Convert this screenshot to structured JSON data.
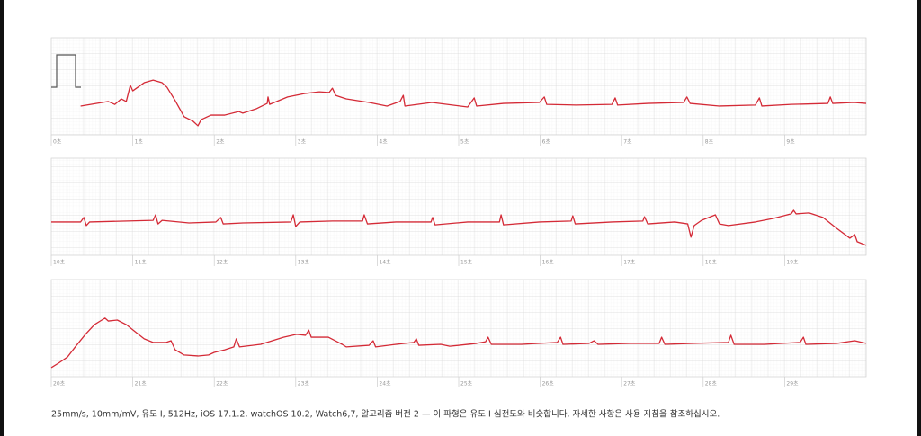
{
  "chart_data": [
    {
      "type": "line",
      "color": "#d42a36",
      "xlim": [
        0,
        10
      ],
      "ylim": [
        -1,
        2
      ],
      "xticks": [
        {
          "value": 0,
          "label": "0초"
        },
        {
          "value": 1,
          "label": "1초"
        },
        {
          "value": 2,
          "label": "2초"
        },
        {
          "value": 3,
          "label": "3초"
        },
        {
          "value": 4,
          "label": "4초"
        },
        {
          "value": 5,
          "label": "5초"
        },
        {
          "value": 6,
          "label": "6초"
        },
        {
          "value": 7,
          "label": "7초"
        },
        {
          "value": 8,
          "label": "8초"
        },
        {
          "value": 9,
          "label": "9초"
        }
      ],
      "x": [
        0.36,
        0.7,
        0.78,
        0.86,
        0.92,
        0.97,
        1.0,
        1.14,
        1.25,
        1.36,
        1.42,
        1.52,
        1.63,
        1.74,
        1.8,
        1.84,
        1.96,
        2.13,
        2.3,
        2.35,
        2.52,
        2.65,
        2.66,
        2.68,
        2.9,
        3.12,
        3.29,
        3.41,
        3.45,
        3.49,
        3.62,
        3.9,
        4.12,
        4.28,
        4.32,
        4.34,
        4.67,
        5.11,
        5.19,
        5.22,
        5.55,
        5.99,
        6.05,
        6.08,
        6.44,
        6.88,
        6.92,
        6.95,
        7.32,
        7.76,
        7.8,
        7.84,
        8.2,
        8.64,
        8.69,
        8.72,
        9.08,
        9.53,
        9.56,
        9.59,
        9.85,
        10.0
      ],
      "values": [
        -0.11,
        0.03,
        -0.06,
        0.11,
        0.03,
        0.53,
        0.36,
        0.61,
        0.69,
        0.61,
        0.47,
        0.06,
        -0.44,
        -0.58,
        -0.72,
        -0.53,
        -0.39,
        -0.39,
        -0.28,
        -0.33,
        -0.19,
        -0.03,
        0.17,
        -0.06,
        0.17,
        0.28,
        0.33,
        0.31,
        0.44,
        0.22,
        0.11,
        0,
        -0.11,
        0.03,
        0.22,
        -0.11,
        0,
        -0.14,
        0.14,
        -0.11,
        -0.03,
        0,
        0.17,
        -0.06,
        -0.08,
        -0.06,
        0.14,
        -0.08,
        -0.03,
        0,
        0.17,
        -0.03,
        -0.11,
        -0.08,
        0.14,
        -0.11,
        -0.06,
        -0.03,
        0.17,
        -0.03,
        0,
        -0.03
      ]
    },
    {
      "type": "line",
      "color": "#d42a36",
      "xlim": [
        10,
        20
      ],
      "ylim": [
        -1,
        2
      ],
      "xticks": [
        {
          "value": 10,
          "label": "10초"
        },
        {
          "value": 11,
          "label": "11초"
        },
        {
          "value": 12,
          "label": "12초"
        },
        {
          "value": 13,
          "label": "13초"
        },
        {
          "value": 14,
          "label": "14초"
        },
        {
          "value": 15,
          "label": "15초"
        },
        {
          "value": 16,
          "label": "16초"
        },
        {
          "value": 17,
          "label": "17초"
        },
        {
          "value": 18,
          "label": "18초"
        },
        {
          "value": 19,
          "label": "19초"
        }
      ],
      "x": [
        10.0,
        10.36,
        10.4,
        10.43,
        10.47,
        11.25,
        11.28,
        11.31,
        11.36,
        11.69,
        12.02,
        12.08,
        12.11,
        12.35,
        12.94,
        12.97,
        13.0,
        13.05,
        13.45,
        13.82,
        13.84,
        13.88,
        14.23,
        14.66,
        14.68,
        14.71,
        15.11,
        15.5,
        15.52,
        15.55,
        15.99,
        16.38,
        16.4,
        16.43,
        16.88,
        17.26,
        17.28,
        17.32,
        17.65,
        17.81,
        17.85,
        17.89,
        17.98,
        18.09,
        18.15,
        18.2,
        18.31,
        18.64,
        18.86,
        19.08,
        19.11,
        19.14,
        19.3,
        19.47,
        19.64,
        19.8,
        19.86,
        19.89,
        20.0
      ],
      "values": [
        0.03,
        0.03,
        0.17,
        -0.08,
        0.03,
        0.08,
        0.25,
        -0.03,
        0.08,
        0,
        0.03,
        0.17,
        -0.03,
        0,
        0.03,
        0.25,
        -0.11,
        0.03,
        0.06,
        0.06,
        0.25,
        -0.03,
        0.03,
        0.03,
        0.17,
        -0.06,
        0.03,
        0.03,
        0.25,
        -0.06,
        0.03,
        0.06,
        0.22,
        -0.03,
        0.03,
        0.06,
        0.19,
        -0.03,
        0.03,
        -0.03,
        -0.44,
        -0.08,
        0.08,
        0.19,
        0.25,
        -0.03,
        -0.08,
        0.03,
        0.14,
        0.28,
        0.39,
        0.28,
        0.31,
        0.17,
        -0.17,
        -0.47,
        -0.36,
        -0.58,
        -0.69
      ]
    },
    {
      "type": "line",
      "color": "#d42a36",
      "xlim": [
        20,
        30
      ],
      "ylim": [
        -1,
        2
      ],
      "xticks": [
        {
          "value": 20,
          "label": "20초"
        },
        {
          "value": 21,
          "label": "21초"
        },
        {
          "value": 22,
          "label": "22초"
        },
        {
          "value": 23,
          "label": "23초"
        },
        {
          "value": 24,
          "label": "24초"
        },
        {
          "value": 25,
          "label": "25초"
        },
        {
          "value": 26,
          "label": "26초"
        },
        {
          "value": 27,
          "label": "27초"
        },
        {
          "value": 28,
          "label": "28초"
        },
        {
          "value": 29,
          "label": "29초"
        }
      ],
      "x": [
        20.0,
        20.09,
        20.2,
        20.31,
        20.42,
        20.53,
        20.62,
        20.66,
        20.7,
        20.81,
        20.92,
        21.03,
        21.14,
        21.25,
        21.41,
        21.47,
        21.52,
        21.63,
        21.8,
        21.93,
        22.0,
        22.13,
        22.24,
        22.27,
        22.31,
        22.57,
        22.85,
        23.01,
        23.12,
        23.16,
        23.19,
        23.4,
        23.57,
        23.62,
        23.9,
        23.95,
        23.98,
        24.23,
        24.45,
        24.48,
        24.51,
        24.78,
        24.89,
        25.22,
        25.33,
        25.36,
        25.4,
        25.77,
        26.21,
        26.25,
        26.28,
        26.6,
        26.66,
        26.71,
        27.1,
        27.46,
        27.49,
        27.53,
        27.87,
        28.31,
        28.34,
        28.38,
        28.75,
        29.19,
        29.23,
        29.26,
        29.64,
        29.86,
        30.0
      ],
      "values": [
        -0.72,
        -0.58,
        -0.39,
        -0.03,
        0.31,
        0.61,
        0.75,
        0.81,
        0.72,
        0.75,
        0.61,
        0.39,
        0.17,
        0.06,
        0.06,
        0.11,
        -0.17,
        -0.33,
        -0.36,
        -0.33,
        -0.25,
        -0.17,
        -0.08,
        0.17,
        -0.08,
        0,
        0.22,
        0.31,
        0.28,
        0.44,
        0.22,
        0.22,
        0,
        -0.08,
        -0.03,
        0.11,
        -0.08,
        0,
        0.06,
        0.17,
        -0.03,
        0,
        -0.06,
        0.03,
        0.08,
        0.22,
        0,
        0,
        0.06,
        0.22,
        0,
        0.03,
        0.11,
        0,
        0.03,
        0.03,
        0.22,
        0,
        0.03,
        0.06,
        0.28,
        0,
        0,
        0.06,
        0.22,
        0,
        0.03,
        0.11,
        0.03
      ]
    }
  ],
  "caption": "25mm/s, 10mm/mV, 유도 I, 512Hz, iOS 17.1.2, watchOS 10.2, Watch6,7, 알고리즘 버전 2 — 이 파형은 유도 I 심전도와 비슷합니다. 자세한 사항은 사용 지침을 참조하십시오."
}
